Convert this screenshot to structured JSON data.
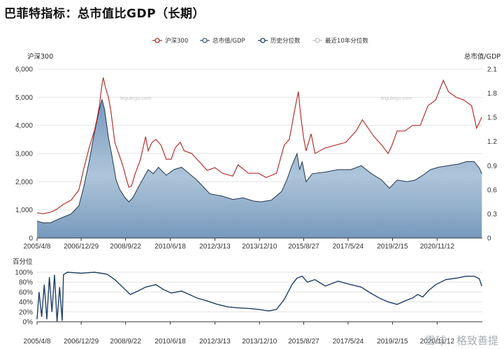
{
  "title": "巴菲特指标：总市值比GDP（长期）",
  "footer_watermark": "雪球：格致善提",
  "chart_data": [
    {
      "type": "line",
      "name": "main",
      "legend_placement": "top-center",
      "legend": [
        {
          "name": "沪深300",
          "color": "#b5312f",
          "marker": "circle"
        },
        {
          "name": "总市值/GDP",
          "color": "#3b5f82",
          "marker": "circle"
        },
        {
          "name": "历史分位数",
          "color": "#1e3f66",
          "marker": "circle"
        },
        {
          "name": "最近10年分位数",
          "color": "#c0c0c0",
          "marker": "circle"
        }
      ],
      "left_axis_label": "沪深300",
      "right_axis_label": "总市值/GDP",
      "left_ylim": [
        0,
        6000
      ],
      "left_ticks": [
        "0",
        "1,000",
        "2,000",
        "3,000",
        "4,000",
        "5,000",
        "6,000"
      ],
      "right_ylim": [
        0,
        2.1
      ],
      "right_ticks": [
        "0",
        "0.3",
        "0.6",
        "0.9",
        "1.2",
        "1.5",
        "1.8",
        "2.1"
      ],
      "x_ticks": [
        "2005/4/8",
        "2006/12/29",
        "2008/9/22",
        "2010/6/18",
        "2012/3/13",
        "2013/12/10",
        "2015/8/27",
        "2017/5/24",
        "2019/2/15",
        "2020/11/12"
      ],
      "watermark": "legulegu.com",
      "grid": true,
      "series": [
        {
          "name": "沪深300",
          "axis": "left",
          "color": "#b5312f",
          "x": [
            2005.27,
            2005.5,
            2005.8,
            2006.0,
            2006.3,
            2006.6,
            2006.9,
            2007.1,
            2007.3,
            2007.5,
            2007.6,
            2007.7,
            2007.8,
            2007.85,
            2007.95,
            2008.05,
            2008.15,
            2008.3,
            2008.45,
            2008.6,
            2008.75,
            2008.85,
            2008.95,
            2009.1,
            2009.3,
            2009.5,
            2009.6,
            2009.75,
            2009.9,
            2010.1,
            2010.3,
            2010.5,
            2010.65,
            2010.85,
            2011.0,
            2011.3,
            2011.6,
            2011.9,
            2012.2,
            2012.5,
            2012.9,
            2013.1,
            2013.5,
            2013.9,
            2014.2,
            2014.6,
            2014.9,
            2015.1,
            2015.3,
            2015.45,
            2015.55,
            2015.65,
            2015.75,
            2015.95,
            2016.1,
            2016.5,
            2016.9,
            2017.3,
            2017.7,
            2017.95,
            2018.1,
            2018.4,
            2018.7,
            2018.95,
            2019.1,
            2019.3,
            2019.6,
            2019.9,
            2020.2,
            2020.5,
            2020.8,
            2021.1,
            2021.3,
            2021.6,
            2021.9,
            2022.2,
            2022.4,
            2022.6
          ],
          "values": [
            900,
            860,
            920,
            1000,
            1200,
            1350,
            1700,
            2500,
            3200,
            3800,
            4200,
            4700,
            5450,
            5700,
            5300,
            5000,
            4500,
            3400,
            3000,
            2600,
            2100,
            1800,
            1850,
            2300,
            2800,
            3600,
            3100,
            3400,
            3500,
            3300,
            2800,
            2800,
            3200,
            3400,
            3100,
            3000,
            2700,
            2400,
            2500,
            2300,
            2200,
            2600,
            2300,
            2300,
            2150,
            2300,
            3300,
            3500,
            4500,
            5200,
            4300,
            3600,
            3100,
            3700,
            3000,
            3200,
            3300,
            3400,
            3800,
            4200,
            4000,
            3600,
            3300,
            3000,
            3300,
            3800,
            3800,
            4000,
            4000,
            4700,
            4900,
            5600,
            5200,
            5000,
            4900,
            4700,
            3900,
            4300
          ]
        },
        {
          "name": "总市值/GDP",
          "axis": "right",
          "color": "#3b5f82",
          "x": [
            2005.27,
            2005.5,
            2005.8,
            2006.0,
            2006.3,
            2006.6,
            2006.9,
            2007.1,
            2007.3,
            2007.5,
            2007.7,
            2007.8,
            2007.9,
            2008.05,
            2008.2,
            2008.35,
            2008.5,
            2008.7,
            2008.85,
            2009.0,
            2009.3,
            2009.6,
            2009.8,
            2010.0,
            2010.3,
            2010.6,
            2010.9,
            2011.2,
            2011.5,
            2011.8,
            2012.0,
            2012.5,
            2012.9,
            2013.3,
            2013.7,
            2014.0,
            2014.4,
            2014.8,
            2015.0,
            2015.2,
            2015.4,
            2015.5,
            2015.6,
            2015.75,
            2016.0,
            2016.5,
            2017.0,
            2017.5,
            2017.9,
            2018.3,
            2018.7,
            2019.0,
            2019.3,
            2019.7,
            2020.0,
            2020.3,
            2020.6,
            2020.9,
            2021.3,
            2021.7,
            2022.0,
            2022.3,
            2022.5,
            2022.6
          ],
          "values": [
            0.21,
            0.19,
            0.19,
            0.22,
            0.26,
            0.3,
            0.4,
            0.65,
            0.95,
            1.3,
            1.6,
            1.72,
            1.6,
            1.25,
            1.0,
            0.72,
            0.6,
            0.5,
            0.45,
            0.5,
            0.68,
            0.85,
            0.8,
            0.88,
            0.78,
            0.85,
            0.88,
            0.8,
            0.72,
            0.62,
            0.55,
            0.52,
            0.48,
            0.5,
            0.46,
            0.45,
            0.47,
            0.58,
            0.72,
            0.9,
            1.05,
            0.85,
            0.95,
            0.7,
            0.8,
            0.82,
            0.85,
            0.85,
            0.9,
            0.8,
            0.72,
            0.62,
            0.72,
            0.7,
            0.72,
            0.78,
            0.85,
            0.88,
            0.9,
            0.92,
            0.95,
            0.95,
            0.87,
            0.8
          ]
        }
      ]
    },
    {
      "type": "line",
      "name": "percentile",
      "axis_label": "百分位",
      "ylim": [
        0,
        100
      ],
      "y_ticks": [
        "0%",
        "20%",
        "40%",
        "60%",
        "80%",
        "100%"
      ],
      "x_ticks": [
        "2005/4/8",
        "2006/12/29",
        "2008/9/22",
        "2010/6/18",
        "2012/3/13",
        "2013/12/10",
        "2015/8/27",
        "2017/5/24",
        "2019/2/15",
        "2020/11/12"
      ],
      "grid": true,
      "series": [
        {
          "name": "历史分位数",
          "color": "#1e3f66",
          "x": [
            2005.27,
            2005.35,
            2005.45,
            2005.55,
            2005.65,
            2005.75,
            2005.85,
            2005.95,
            2006.05,
            2006.15,
            2006.25,
            2006.3,
            2006.45,
            2006.7,
            2007.0,
            2007.5,
            2008.0,
            2008.3,
            2008.6,
            2008.9,
            2009.2,
            2009.5,
            2009.9,
            2010.2,
            2010.5,
            2010.9,
            2011.2,
            2011.5,
            2011.9,
            2012.3,
            2012.7,
            2013.1,
            2013.5,
            2013.9,
            2014.3,
            2014.6,
            2014.9,
            2015.2,
            2015.4,
            2015.6,
            2015.8,
            2016.1,
            2016.5,
            2017.0,
            2017.5,
            2017.9,
            2018.2,
            2018.6,
            2018.95,
            2019.3,
            2019.6,
            2019.9,
            2020.1,
            2020.3,
            2020.5,
            2020.8,
            2021.2,
            2021.6,
            2022.0,
            2022.3,
            2022.5,
            2022.6
          ],
          "values": [
            5,
            60,
            10,
            75,
            5,
            90,
            20,
            95,
            0,
            70,
            2,
            95,
            100,
            99,
            98,
            100,
            96,
            85,
            70,
            55,
            62,
            70,
            75,
            65,
            58,
            62,
            55,
            48,
            42,
            35,
            30,
            28,
            27,
            25,
            22,
            25,
            45,
            75,
            88,
            92,
            80,
            85,
            72,
            82,
            75,
            70,
            60,
            48,
            40,
            35,
            42,
            48,
            55,
            50,
            62,
            75,
            85,
            88,
            92,
            92,
            87,
            72
          ]
        }
      ]
    }
  ]
}
